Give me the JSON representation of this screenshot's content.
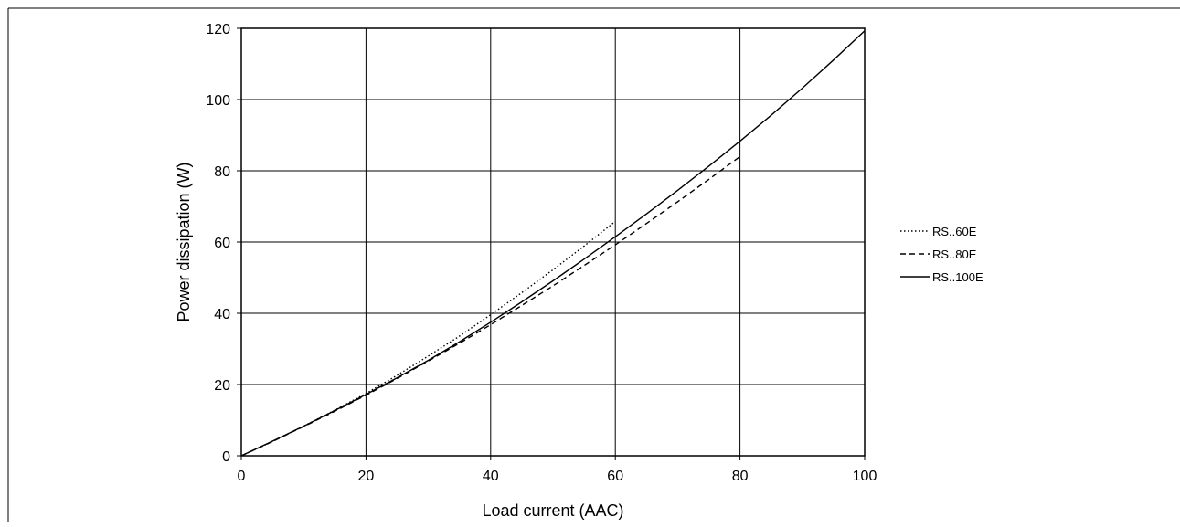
{
  "chart_data": {
    "type": "line",
    "title": "",
    "xlabel": "Load current (AAC)",
    "ylabel": "Power dissipation (W)",
    "xlim": [
      0,
      100
    ],
    "ylim": [
      0,
      120
    ],
    "x_ticks": [
      "0",
      "20",
      "40",
      "60",
      "80",
      "100"
    ],
    "y_ticks": [
      "0",
      "20",
      "40",
      "60",
      "80",
      "100",
      "120"
    ],
    "grid": true,
    "legend_position": "right",
    "series": [
      {
        "name": "RS..60E",
        "style": "dotted",
        "x": [
          0,
          5,
          10,
          15,
          20,
          25,
          30,
          35,
          40,
          45,
          50,
          55,
          60
        ],
        "y": [
          0,
          4.0,
          8.3,
          12.8,
          17.5,
          22.6,
          28.0,
          33.6,
          39.6,
          45.8,
          52.2,
          58.9,
          65.8
        ]
      },
      {
        "name": "RS..80E",
        "style": "dashed",
        "x": [
          0,
          5,
          10,
          15,
          20,
          25,
          30,
          35,
          40,
          45,
          50,
          55,
          60,
          65,
          70,
          75,
          80
        ],
        "y": [
          0,
          4.0,
          8.2,
          12.5,
          17.0,
          21.7,
          26.6,
          31.6,
          36.8,
          42.2,
          47.7,
          53.4,
          59.2,
          65.2,
          71.3,
          77.6,
          84.0
        ]
      },
      {
        "name": "RS..100E",
        "style": "solid",
        "x": [
          0,
          5,
          10,
          15,
          20,
          25,
          30,
          35,
          40,
          45,
          50,
          55,
          60,
          65,
          70,
          75,
          80,
          85,
          90,
          95,
          100
        ],
        "y": [
          0,
          4.1,
          8.3,
          12.7,
          17.2,
          21.9,
          26.8,
          32.0,
          37.5,
          43.2,
          49.1,
          55.2,
          61.5,
          67.9,
          74.5,
          81.3,
          88.3,
          95.6,
          103.2,
          111.1,
          119.3
        ]
      }
    ]
  }
}
